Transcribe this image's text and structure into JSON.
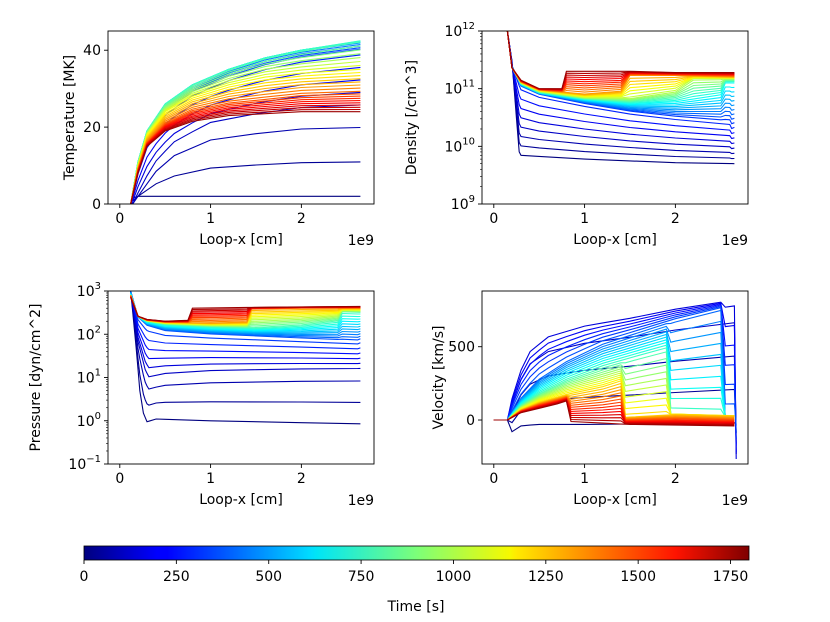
{
  "chart_data": [
    {
      "type": "line",
      "id": "temperature",
      "title": "",
      "xlabel": "Loop-x [cm]",
      "ylabel": "Temperature [MK]",
      "x_offset_label": "1e9",
      "xlim": [
        -0.13,
        2.8
      ],
      "ylim": [
        0,
        45
      ],
      "yscale": "linear",
      "xticks": [
        0,
        1,
        2
      ],
      "xtick_labels": [
        "0",
        "1",
        "2"
      ],
      "yticks": [
        0,
        20,
        40
      ],
      "ytick_labels": [
        "0",
        "20",
        "40"
      ],
      "grid": false,
      "series_by_time": [
        {
          "t": 0,
          "x": [
            0.12,
            0.14,
            0.2,
            0.25,
            0.28,
            2.65
          ],
          "y": [
            0,
            1.5,
            2,
            2,
            2,
            2
          ]
        },
        {
          "t": 100,
          "x": [
            0.15,
            0.2,
            0.3,
            0.4,
            0.6,
            1.0,
            1.5,
            2.0,
            2.65
          ],
          "y": [
            0,
            2,
            6,
            10,
            15,
            20,
            22,
            23.5,
            24
          ]
        },
        {
          "t": 300,
          "x": [
            0.12,
            0.2,
            0.3,
            0.5,
            0.8,
            1.2,
            1.6,
            2.0,
            2.65
          ],
          "y": [
            0,
            10,
            18,
            24,
            29,
            33,
            36,
            38,
            40
          ]
        },
        {
          "t": 500,
          "x": [
            0.12,
            0.2,
            0.3,
            0.5,
            0.8,
            1.2,
            1.6,
            2.0,
            2.65
          ],
          "y": [
            0,
            11,
            19,
            26,
            31,
            35,
            38,
            40,
            42
          ]
        },
        {
          "t": 800,
          "x": [
            0.12,
            0.2,
            0.3,
            0.5,
            0.8,
            1.2,
            1.6,
            2.0,
            2.65
          ],
          "y": [
            0,
            11,
            19,
            26,
            31,
            35,
            38,
            40,
            42.5
          ]
        },
        {
          "t": 1100,
          "x": [
            0.12,
            0.2,
            0.3,
            0.5,
            0.8,
            1.2,
            1.6,
            2.0,
            2.65
          ],
          "y": [
            0,
            10,
            18,
            24,
            28,
            31,
            33,
            34,
            35
          ]
        },
        {
          "t": 1400,
          "x": [
            0.12,
            0.2,
            0.3,
            0.5,
            0.8,
            1.2,
            1.6,
            2.0,
            2.65
          ],
          "y": [
            0,
            9,
            16,
            21,
            24.5,
            26.5,
            27.5,
            28.5,
            29
          ]
        },
        {
          "t": 1750,
          "x": [
            0.12,
            0.2,
            0.3,
            0.5,
            0.8,
            1.2,
            1.6,
            2.0,
            2.65
          ],
          "y": [
            0,
            8,
            15,
            19,
            21.5,
            23,
            23.5,
            24,
            24
          ]
        }
      ]
    },
    {
      "type": "line",
      "id": "density",
      "title": "",
      "xlabel": "Loop-x [cm]",
      "ylabel": "Density [/cm^3]",
      "x_offset_label": "1e9",
      "xlim": [
        -0.13,
        2.8
      ],
      "ylim": [
        1000000000.0,
        1000000000000.0
      ],
      "yscale": "log",
      "xticks": [
        0,
        1,
        2
      ],
      "xtick_labels": [
        "0",
        "1",
        "2"
      ],
      "yticks": [
        1000000000.0,
        10000000000.0,
        100000000000.0,
        1000000000000.0
      ],
      "ytick_labels": [
        "10",
        "10",
        "10",
        "10"
      ],
      "ytick_exponents": [
        "9",
        "10",
        "11",
        "12"
      ],
      "grid": false,
      "series_by_time": [
        {
          "t": 0,
          "x": [
            0.15,
            0.2,
            0.25,
            0.28,
            0.3,
            1.0,
            2.0,
            2.65
          ],
          "y": [
            1000000000000.0,
            300000000000.0,
            30000000000.0,
            8000000000.0,
            7000000000.0,
            6000000000.0,
            5200000000.0,
            5000000000.0
          ]
        },
        {
          "t": 300,
          "x": [
            0.15,
            0.2,
            0.3,
            0.5,
            1.0,
            1.5,
            2.0,
            2.6,
            2.62,
            2.65
          ],
          "y": [
            1000000000000.0,
            250000000000.0,
            110000000000.0,
            80000000000.0,
            55000000000.0,
            40000000000.0,
            32000000000.0,
            26000000000.0,
            22000000000.0,
            23000000000.0
          ]
        },
        {
          "t": 700,
          "x": [
            0.15,
            0.2,
            0.3,
            0.5,
            1.0,
            1.5,
            2.0,
            2.5,
            2.55,
            2.65
          ],
          "y": [
            1000000000000.0,
            230000000000.0,
            120000000000.0,
            85000000000.0,
            65000000000.0,
            55000000000.0,
            60000000000.0,
            80000000000.0,
            130000000000.0,
            130000000000.0
          ]
        },
        {
          "t": 1000,
          "x": [
            0.15,
            0.2,
            0.3,
            0.5,
            1.0,
            1.5,
            2.0,
            2.2,
            2.65
          ],
          "y": [
            1000000000000.0,
            230000000000.0,
            125000000000.0,
            90000000000.0,
            70000000000.0,
            68000000000.0,
            90000000000.0,
            150000000000.0,
            150000000000.0
          ]
        },
        {
          "t": 1300,
          "x": [
            0.15,
            0.2,
            0.3,
            0.5,
            1.0,
            1.4,
            1.5,
            2.0,
            2.65
          ],
          "y": [
            1000000000000.0,
            230000000000.0,
            130000000000.0,
            95000000000.0,
            80000000000.0,
            90000000000.0,
            170000000000.0,
            170000000000.0,
            160000000000.0
          ]
        },
        {
          "t": 1750,
          "x": [
            0.15,
            0.2,
            0.3,
            0.5,
            0.75,
            0.8,
            1.5,
            2.0,
            2.65
          ],
          "y": [
            1000000000000.0,
            230000000000.0,
            140000000000.0,
            100000000000.0,
            100000000000.0,
            200000000000.0,
            200000000000.0,
            190000000000.0,
            190000000000.0
          ]
        }
      ]
    },
    {
      "type": "line",
      "id": "pressure",
      "title": "",
      "xlabel": "Loop-x [cm]",
      "ylabel": "Pressure [dyn/cm^2]",
      "x_offset_label": "1e9",
      "xlim": [
        -0.13,
        2.8
      ],
      "ylim": [
        0.1,
        1000
      ],
      "yscale": "log",
      "xticks": [
        0,
        1,
        2
      ],
      "xtick_labels": [
        "0",
        "1",
        "2"
      ],
      "yticks": [
        0.1,
        1,
        10,
        100,
        1000
      ],
      "ytick_labels": [
        "10",
        "10",
        "10",
        "10",
        "10"
      ],
      "ytick_exponents": [
        "−1",
        "0",
        "1",
        "2",
        "3"
      ],
      "grid": false,
      "series_by_time": [
        {
          "t": 0,
          "x": [
            0.12,
            0.18,
            0.22,
            0.26,
            0.3,
            0.4,
            1.0,
            2.0,
            2.65
          ],
          "y": [
            1000,
            50,
            5,
            1.5,
            0.95,
            1.1,
            1.0,
            0.9,
            0.85
          ]
        },
        {
          "t": 100,
          "x": [
            0.12,
            0.2,
            0.28,
            0.32,
            0.5,
            1.0,
            2.0,
            2.65
          ],
          "y": [
            1000,
            60,
            12,
            8,
            10,
            12,
            13.5,
            14
          ]
        },
        {
          "t": 350,
          "x": [
            0.12,
            0.2,
            0.3,
            0.5,
            1.0,
            1.5,
            2.0,
            2.62,
            2.65
          ],
          "y": [
            1000,
            250,
            160,
            120,
            100,
            90,
            80,
            70,
            75
          ]
        },
        {
          "t": 800,
          "x": [
            0.12,
            0.2,
            0.3,
            0.5,
            1.0,
            1.5,
            2.0,
            2.4,
            2.45,
            2.65
          ],
          "y": [
            800,
            260,
            200,
            170,
            150,
            140,
            160,
            200,
            330,
            320
          ]
        },
        {
          "t": 1300,
          "x": [
            0.12,
            0.2,
            0.3,
            0.5,
            1.0,
            1.4,
            1.45,
            2.0,
            2.65
          ],
          "y": [
            800,
            260,
            210,
            190,
            180,
            190,
            380,
            400,
            400
          ]
        },
        {
          "t": 1750,
          "x": [
            0.12,
            0.2,
            0.3,
            0.5,
            0.75,
            0.8,
            1.5,
            2.0,
            2.65
          ],
          "y": [
            700,
            260,
            220,
            200,
            210,
            400,
            420,
            430,
            440
          ]
        }
      ]
    },
    {
      "type": "line",
      "id": "velocity",
      "title": "",
      "xlabel": "Loop-x [cm]",
      "ylabel": "Velocity [km/s]",
      "x_offset_label": "1e9",
      "xlim": [
        -0.13,
        2.8
      ],
      "ylim": [
        -300,
        880
      ],
      "yscale": "linear",
      "xticks": [
        0,
        1,
        2
      ],
      "xtick_labels": [
        "0",
        "1",
        "2"
      ],
      "yticks": [
        0,
        500
      ],
      "ytick_labels": [
        "0",
        "500"
      ],
      "grid": false,
      "series_by_time": [
        {
          "t": 0,
          "x": [
            0.0,
            0.15,
            0.2,
            0.25,
            0.3,
            0.5,
            1.0,
            2.0,
            2.65
          ],
          "y": [
            0,
            0,
            -80,
            -60,
            -40,
            -30,
            -30,
            -25,
            -20
          ]
        },
        {
          "t": 150,
          "x": [
            0.0,
            0.15,
            0.2,
            0.3,
            0.4,
            0.6,
            1.0,
            1.5,
            2.0,
            2.65,
            2.67
          ],
          "y": [
            0,
            0,
            150,
            350,
            480,
            580,
            650,
            700,
            760,
            820,
            -280
          ]
        },
        {
          "t": 400,
          "x": [
            0.0,
            0.15,
            0.3,
            0.5,
            0.8,
            1.2,
            1.6,
            2.0,
            2.5,
            2.55
          ],
          "y": [
            0,
            0,
            150,
            280,
            400,
            520,
            600,
            680,
            760,
            0
          ]
        },
        {
          "t": 800,
          "x": [
            0.0,
            0.15,
            0.3,
            0.5,
            0.8,
            1.2,
            1.6,
            1.9,
            1.95,
            2.65
          ],
          "y": [
            0,
            0,
            100,
            180,
            270,
            360,
            430,
            480,
            40,
            20
          ]
        },
        {
          "t": 1200,
          "x": [
            0.0,
            0.15,
            0.3,
            0.5,
            0.8,
            1.2,
            1.4,
            1.45,
            2.0,
            2.65
          ],
          "y": [
            0,
            0,
            70,
            120,
            170,
            220,
            260,
            20,
            40,
            30
          ]
        },
        {
          "t": 1750,
          "x": [
            0.0,
            0.15,
            0.3,
            0.5,
            0.7,
            0.8,
            0.85,
            1.5,
            2.0,
            2.65
          ],
          "y": [
            0,
            0,
            50,
            80,
            110,
            130,
            -10,
            -30,
            -35,
            -40
          ]
        }
      ]
    }
  ],
  "colorbar": {
    "label": "Time [s]",
    "cmap": "jet",
    "min": 0,
    "max": 1800,
    "ticks": [
      0,
      250,
      500,
      750,
      1000,
      1250,
      1500,
      1750
    ],
    "tick_labels": [
      "0",
      "250",
      "500",
      "750",
      "1000",
      "1250",
      "1500",
      "1750"
    ]
  }
}
